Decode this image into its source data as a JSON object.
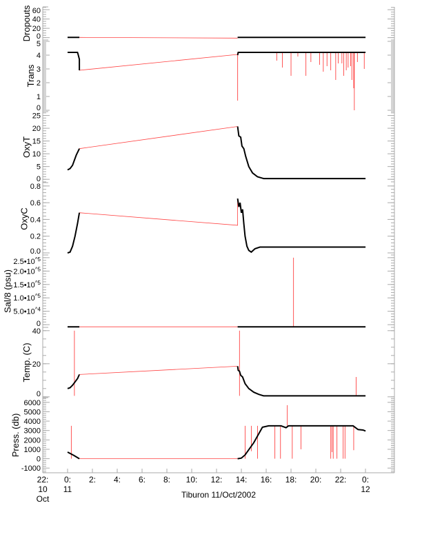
{
  "chart_data": [
    {
      "type": "line",
      "ylabel": "Dropouts",
      "ylim": [
        -5,
        66
      ],
      "yticks": [
        {
          "v": 0,
          "t": "0"
        },
        {
          "v": 20,
          "t": "20"
        },
        {
          "v": 40,
          "t": "40"
        },
        {
          "v": 60,
          "t": "60"
        }
      ],
      "minor": 5,
      "black": [
        [
          [
            0,
            0.5
          ],
          [
            0.95,
            0.5
          ]
        ],
        [
          [
            13.7,
            0.5
          ],
          [
            24,
            0.5
          ]
        ]
      ],
      "red": [
        [
          0.95,
          0.5
        ],
        [
          13.7,
          -1
        ]
      ],
      "spikes": []
    },
    {
      "type": "line",
      "ylabel": "Trans",
      "ylim": [
        -0.1,
        5.1
      ],
      "yticks": [
        {
          "v": 0,
          "t": "0"
        },
        {
          "v": 1,
          "t": "1"
        },
        {
          "v": 2,
          "t": "2"
        },
        {
          "v": 3,
          "t": "3"
        },
        {
          "v": 4,
          "t": "4"
        },
        {
          "v": 5,
          "t": "5"
        }
      ],
      "minor": 0.1,
      "black": [
        [
          [
            0,
            4.2
          ],
          [
            0.8,
            4.2
          ],
          [
            0.85,
            4.05
          ],
          [
            0.95,
            3.7
          ],
          [
            0.95,
            2.9
          ]
        ],
        [
          [
            13.7,
            4.0
          ],
          [
            13.75,
            4.2
          ],
          [
            24,
            4.2
          ]
        ]
      ],
      "red": [
        [
          0.95,
          2.9
        ],
        [
          13.7,
          4.05
        ]
      ],
      "spikes": [
        [
          13.7,
          0.7
        ],
        [
          16.85,
          3.6
        ],
        [
          17.3,
          3.1
        ],
        [
          18.0,
          2.5
        ],
        [
          18.55,
          3.9
        ],
        [
          19.2,
          2.5
        ],
        [
          19.6,
          3.5
        ],
        [
          20.3,
          3.3
        ],
        [
          20.6,
          2.8
        ],
        [
          20.9,
          3.2
        ],
        [
          21.2,
          2.9
        ],
        [
          21.6,
          2.2
        ],
        [
          21.8,
          3.4
        ],
        [
          22.1,
          3.4
        ],
        [
          22.25,
          2.5
        ],
        [
          22.45,
          2.9
        ],
        [
          22.6,
          3.1
        ],
        [
          22.8,
          3.2
        ],
        [
          22.9,
          2.2
        ],
        [
          23.05,
          1.6
        ],
        [
          23.1,
          0
        ],
        [
          23.35,
          3.5
        ],
        [
          23.9,
          3.0
        ]
      ]
    },
    {
      "type": "line",
      "ylabel": "OxyT",
      "ylim": [
        -1.3,
        26.5
      ],
      "yticks": [
        {
          "v": 0,
          "t": "0"
        },
        {
          "v": 5,
          "t": "5"
        },
        {
          "v": 10,
          "t": "10"
        },
        {
          "v": 15,
          "t": "15"
        },
        {
          "v": 20,
          "t": "20"
        },
        {
          "v": 25,
          "t": "25"
        }
      ],
      "minor": 1,
      "black": [
        [
          [
            0,
            3.7
          ],
          [
            0.2,
            4.2
          ],
          [
            0.4,
            5.5
          ],
          [
            0.55,
            7.5
          ],
          [
            0.7,
            9.5
          ],
          [
            0.85,
            11
          ],
          [
            0.95,
            12
          ]
        ],
        [
          [
            13.7,
            20.7
          ],
          [
            13.8,
            17
          ],
          [
            13.95,
            16.5
          ],
          [
            14.05,
            13
          ],
          [
            14.2,
            12
          ],
          [
            14.35,
            9
          ],
          [
            14.6,
            5
          ],
          [
            14.9,
            2.5
          ],
          [
            15.3,
            1
          ],
          [
            15.8,
            0.3
          ],
          [
            24,
            0.3
          ]
        ]
      ],
      "red": [
        [
          0.95,
          12
        ],
        [
          13.7,
          20.7
        ]
      ],
      "spikes": []
    },
    {
      "type": "line",
      "ylabel": "OxyC",
      "ylim": [
        -0.025,
        0.84
      ],
      "yticks": [
        {
          "v": 0,
          "t": "0.0"
        },
        {
          "v": 0.2,
          "t": "0.2"
        },
        {
          "v": 0.4,
          "t": "0.4"
        },
        {
          "v": 0.6,
          "t": "0.6"
        },
        {
          "v": 0.8,
          "t": "0.8"
        }
      ],
      "minor": 0.04,
      "black": [
        [
          [
            0,
            0
          ],
          [
            0.2,
            0.01
          ],
          [
            0.4,
            0.08
          ],
          [
            0.6,
            0.2
          ],
          [
            0.8,
            0.35
          ],
          [
            0.95,
            0.48
          ]
        ],
        [
          [
            13.7,
            0.65
          ],
          [
            13.8,
            0.55
          ],
          [
            13.9,
            0.6
          ],
          [
            14.0,
            0.48
          ],
          [
            14.1,
            0.52
          ],
          [
            14.2,
            0.35
          ],
          [
            14.3,
            0.2
          ],
          [
            14.45,
            0.08
          ],
          [
            14.6,
            0.03
          ],
          [
            14.8,
            0.01
          ],
          [
            15.1,
            0.05
          ],
          [
            15.5,
            0.07
          ],
          [
            24,
            0.07
          ]
        ]
      ],
      "red": [
        [
          0.95,
          0.48
        ],
        [
          13.7,
          0.33
        ],
        [
          13.7,
          0.65
        ]
      ],
      "spikes": []
    },
    {
      "type": "line",
      "ylabel": "Sal/8 (psu)",
      "ylim": [
        -10000,
        260000
      ],
      "yticks": [
        {
          "v": 0,
          "t": "0"
        },
        {
          "v": 50000,
          "t": "5.0•10^4"
        },
        {
          "v": 100000,
          "t": "1.0•10^5"
        },
        {
          "v": 150000,
          "t": "1.5•10^5"
        },
        {
          "v": 200000,
          "t": "2.0•10^5"
        },
        {
          "v": 250000,
          "t": "2.5•10^5"
        }
      ],
      "minor": 10000,
      "black": [
        [
          [
            0,
            -8000
          ],
          [
            0.95,
            -8000
          ]
        ],
        [
          [
            13.7,
            -8000
          ],
          [
            24,
            -8000
          ]
        ]
      ],
      "red": [
        [
          0.95,
          -8000
        ],
        [
          13.7,
          -8000
        ]
      ],
      "spikes": [
        [
          18.2,
          250000
        ]
      ],
      "spikeBase": -8000
    },
    {
      "type": "line",
      "ylabel": "Temp. (C)",
      "ylim": [
        -0.5,
        42
      ],
      "yticks": [
        {
          "v": 0,
          "t": "0"
        },
        {
          "v": 20,
          "t": "20"
        },
        {
          "v": 40,
          "t": "40"
        }
      ],
      "minor": 5,
      "black": [
        [
          [
            0,
            5
          ],
          [
            0.2,
            5.5
          ],
          [
            0.4,
            7
          ],
          [
            0.6,
            9
          ],
          [
            0.8,
            11
          ],
          [
            0.95,
            13.5
          ]
        ],
        [
          [
            13.7,
            18.5
          ],
          [
            13.75,
            16
          ],
          [
            13.85,
            15.5
          ],
          [
            13.95,
            13
          ],
          [
            14.1,
            12
          ],
          [
            14.3,
            8
          ],
          [
            14.6,
            5
          ],
          [
            15.0,
            2.8
          ],
          [
            15.4,
            1.5
          ],
          [
            15.8,
            0.6
          ],
          [
            24,
            0.6
          ]
        ]
      ],
      "red": [
        [
          0.95,
          13.5
        ],
        [
          13.7,
          18.5
        ]
      ],
      "spikes": [
        [
          0.55,
          40
        ],
        [
          13.85,
          40
        ],
        [
          23.25,
          12
        ]
      ],
      "spikeBase": 0.6
    },
    {
      "type": "line",
      "ylabel": "Press. (db)",
      "ylim": [
        -1500,
        6500
      ],
      "yticks": [
        {
          "v": -1000,
          "t": "-1000"
        },
        {
          "v": 0,
          "t": "0"
        },
        {
          "v": 1000,
          "t": "1000"
        },
        {
          "v": 2000,
          "t": "2000"
        },
        {
          "v": 3000,
          "t": "3000"
        },
        {
          "v": 4000,
          "t": "4000"
        },
        {
          "v": 5000,
          "t": "5000"
        },
        {
          "v": 6000,
          "t": "6000"
        }
      ],
      "minor": 200,
      "black": [
        [
          [
            0,
            700
          ],
          [
            0.5,
            350
          ],
          [
            0.95,
            0
          ]
        ],
        [
          [
            13.7,
            0
          ],
          [
            14.0,
            60
          ],
          [
            14.3,
            400
          ],
          [
            15.0,
            1700
          ],
          [
            15.7,
            3350
          ],
          [
            16.2,
            3500
          ],
          [
            17.2,
            3500
          ],
          [
            17.6,
            3300
          ],
          [
            17.8,
            3500
          ],
          [
            23.0,
            3500
          ],
          [
            23.4,
            3100
          ],
          [
            23.8,
            3050
          ],
          [
            24,
            2950
          ]
        ]
      ],
      "red": [
        [
          0.95,
          0
        ],
        [
          13.7,
          0
        ]
      ],
      "spikes": [
        [
          0.3,
          0
        ],
        [
          14.3,
          0
        ],
        [
          14.8,
          800
        ],
        [
          15.3,
          0
        ],
        [
          16.7,
          0
        ],
        [
          17.15,
          0
        ],
        [
          17.7,
          5700
        ],
        [
          18.1,
          0
        ],
        [
          18.8,
          1000
        ],
        [
          21.2,
          0
        ],
        [
          21.3,
          700
        ],
        [
          21.4,
          0
        ],
        [
          21.7,
          0
        ],
        [
          22.2,
          0
        ],
        [
          22.35,
          0
        ],
        [
          23.05,
          900
        ]
      ]
    }
  ],
  "x_axis": {
    "xlim": [
      -2,
      26.33
    ],
    "ticks": [
      {
        "v": -2,
        "lines": [
          "22:",
          "10",
          "Oct"
        ]
      },
      {
        "v": 0,
        "lines": [
          "0:",
          "11"
        ]
      },
      {
        "v": 2,
        "lines": [
          "2:"
        ]
      },
      {
        "v": 4,
        "lines": [
          "4:"
        ]
      },
      {
        "v": 6,
        "lines": [
          "6:"
        ]
      },
      {
        "v": 8,
        "lines": [
          "8:"
        ]
      },
      {
        "v": 10,
        "lines": [
          "10:"
        ]
      },
      {
        "v": 12,
        "lines": [
          "12:"
        ]
      },
      {
        "v": 14,
        "lines": [
          "14:"
        ]
      },
      {
        "v": 16,
        "lines": [
          "16:"
        ]
      },
      {
        "v": 18,
        "lines": [
          "18:"
        ]
      },
      {
        "v": 20,
        "lines": [
          "20:"
        ]
      },
      {
        "v": 22,
        "lines": [
          "22:"
        ]
      },
      {
        "v": 24,
        "lines": [
          "0:",
          "12"
        ]
      }
    ],
    "title": "Tiburon 11/Oct/2002"
  },
  "colors": {
    "data": "#000000",
    "gap": "#ff4040",
    "axis": "#aaaaaa"
  }
}
